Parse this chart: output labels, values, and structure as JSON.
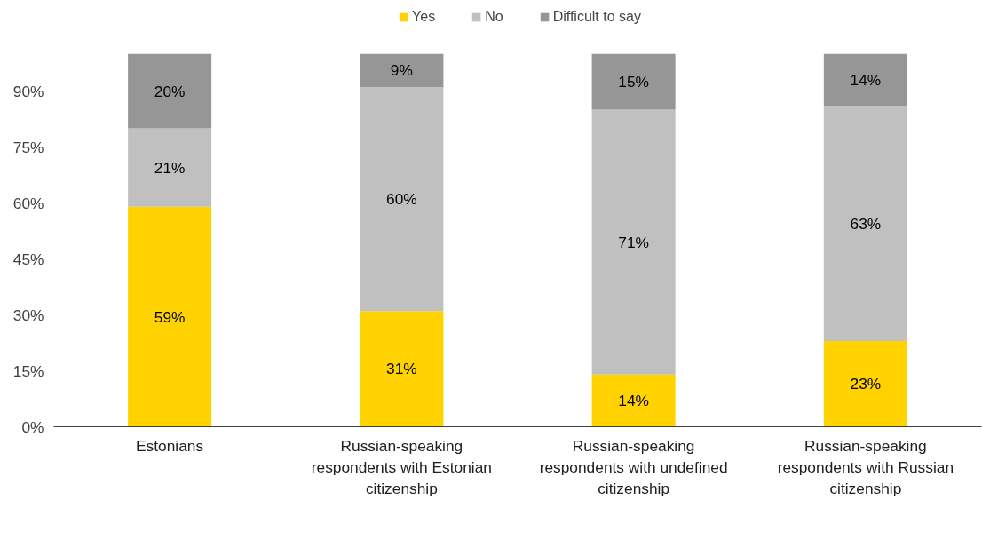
{
  "chart_data": {
    "type": "bar",
    "stacked": true,
    "legend": "top",
    "categories": [
      "Estonians",
      "Russian-speaking respondents with Estonian citizenship",
      "Russian-speaking respondents with undefined citizenship",
      "Russian-speaking respondents with Russian citizenship"
    ],
    "series": [
      {
        "name": "Yes",
        "color": "#ffd200",
        "values": [
          59,
          31,
          14,
          23
        ],
        "value_labels": [
          "59%",
          "31%",
          "14%",
          "23%"
        ]
      },
      {
        "name": "No",
        "color": "#c0c0c0",
        "values": [
          21,
          60,
          71,
          63
        ],
        "value_labels": [
          "21%",
          "60%",
          "71%",
          "63%"
        ]
      },
      {
        "name": "Difficult to say",
        "color": "#969696",
        "values": [
          20,
          9,
          15,
          14
        ],
        "value_labels": [
          "20%",
          "9%",
          "15%",
          "14%"
        ]
      }
    ],
    "ylim": [
      0,
      100
    ],
    "yticks": [
      {
        "value": 0,
        "label": "0%"
      },
      {
        "value": 15,
        "label": "15%"
      },
      {
        "value": 30,
        "label": "30%"
      },
      {
        "value": 45,
        "label": "45%"
      },
      {
        "value": 60,
        "label": "60%"
      },
      {
        "value": 75,
        "label": "75%"
      },
      {
        "value": 90,
        "label": "90%"
      }
    ],
    "grid": false
  }
}
